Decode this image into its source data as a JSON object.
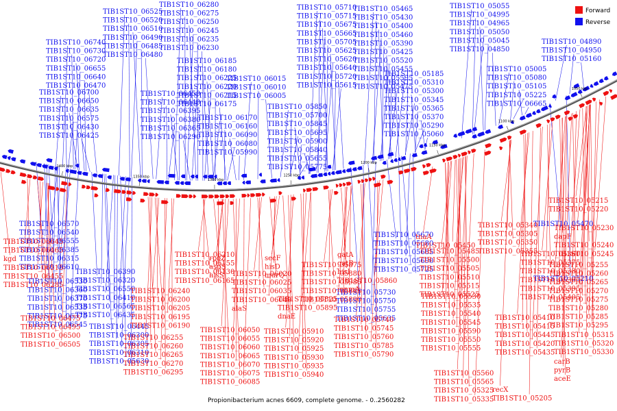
{
  "caption": "Propionibacterium acnes 6609, complete genome. - 0..2560282",
  "legend": {
    "forward": {
      "label": "Forward",
      "color": "#ee1111"
    },
    "reverse": {
      "label": "Reverse",
      "color": "#1111ee"
    }
  },
  "scale_ticks": [
    "1050 kbp",
    "1100 kbp",
    "1150 kbp",
    "1200 kbp",
    "1250 kbp",
    "1300 kbp",
    "1350 kbp",
    "1400 kbp"
  ],
  "reverse_labels": [
    "TIB1ST10_06525",
    "TIB1ST10_06520",
    "TIB1ST10_06510",
    "TIB1ST10_06490",
    "TIB1ST10_06485",
    "TIB1ST10_06480",
    "TIB1ST10_06740",
    "TIB1ST10_06730",
    "TIB1ST10_06720",
    "TIB1ST10_06655",
    "TIB1ST10_06640",
    "TIB1ST10_06470",
    "TIB1ST10_06700",
    "TIB1ST10_06650",
    "TIB1ST10_06635",
    "TIB1ST10_06575",
    "TIB1ST10_06430",
    "TIB1ST10_06425",
    "TIB1ST10_06450",
    "TIB1ST10_06440",
    "TIB1ST10_06395",
    "TIB1ST10_06380",
    "TIB1ST10_06365",
    "TIB1ST10_06290",
    "TIB1ST10_06280",
    "TIB1ST10_06275",
    "TIB1ST10_06250",
    "TIB1ST10_06245",
    "TIB1ST10_06235",
    "TIB1ST10_06230",
    "TIB1ST10_06185",
    "TIB1ST10_06180",
    "TIB1ST10_06225",
    "TIB1ST10_06220",
    "TIB1ST10_06215",
    "TIB1ST10_06175",
    "TIB1ST10_06170",
    "TIB1ST10_06160",
    "TIB1ST10_06090",
    "TIB1ST10_06080",
    "TIB1ST10_05990",
    "TIB1ST10_06015",
    "TIB1ST10_06010",
    "TIB1ST10_06005",
    "TIB1ST10_05710",
    "TIB1ST10_05715",
    "TIB1ST10_05675",
    "TIB1ST10_05665",
    "TIB1ST10_05705",
    "TIB1ST10_05625",
    "TIB1ST10_05620",
    "TIB1ST10_05640",
    "TIB1ST10_05720",
    "TIB1ST10_05615",
    "TIB1ST10_05850",
    "TIB1ST10_05700",
    "TIB1ST10_05845",
    "TIB1ST10_05695",
    "TIB1ST10_05900",
    "TIB1ST10_05840",
    "TIB1ST10_05655",
    "TIB1ST10_05775",
    "TIB1ST10_05465",
    "TIB1ST10_05430",
    "TIB1ST10_05400",
    "TIB1ST10_05460",
    "TIB1ST10_05390",
    "TIB1ST10_05425",
    "TIB1ST10_05520",
    "TIB1ST10_05455",
    "TIB1ST10_05595",
    "TIB1ST10_05475",
    "TIB1ST10_05185",
    "TIB1ST10_05310",
    "TIB1ST10_05300",
    "TIB1ST10_05345",
    "TIB1ST10_05365",
    "TIB1ST10_05370",
    "TIB1ST10_05290",
    "TIB1ST10_05060",
    "TIB1ST10_05055",
    "TIB1ST10_04995",
    "TIB1ST10_04965",
    "TIB1ST10_05050",
    "TIB1ST10_05045",
    "TIB1ST10_04850",
    "TIB1ST10_04890",
    "TIB1ST10_04950",
    "TIB1ST10_05160",
    "TIB1ST10_05005",
    "TIB1ST10_05080",
    "TIB1ST10_05105",
    "TIB1ST10_05225",
    "TIB1ST10_06665",
    "TIB1ST10_06570",
    "TIB1ST10_06540",
    "TIB1ST10_06555",
    "TIB1ST10_06385",
    "TIB1ST10_06315",
    "TIB1ST10_06610",
    "TIB1ST10_06530",
    "TIB1ST10_06360",
    "TIB1ST10_06370",
    "TIB1ST10_06535",
    "TIB1ST10_06375",
    "TIB1ST10_06545",
    "TIB1ST10_06390",
    "TIB1ST10_06320",
    "TIB1ST10_06550",
    "TIB1ST10_06410",
    "TIB1ST10_06565",
    "TIB1ST10_06435",
    "TIB1ST10_06445",
    "TIB1ST10_06300",
    "TIB1ST10_06305",
    "TIB1ST10_06310",
    "TIB1ST10_05630",
    "TIB1ST10_05670",
    "TIB1ST10_05680",
    "TIB1ST10_05685",
    "TIB1ST10_05690",
    "TIB1ST10_05725",
    "TIB1ST10_05730",
    "TIB1ST10_05750",
    "TIB1ST10_05755",
    "TIB1ST10_05635",
    "TIB1ST10_05470",
    "TIB1ST10_05210",
    "TIB1ST10_05250"
  ],
  "forward_labels": [
    "TIB1ST10_06645",
    "TIB1ST10_06465",
    "kgd",
    "TIB1ST10_06515",
    "TIB1ST10_06455",
    "TIB1ST10_06285",
    "TIB1ST10_06475",
    "TIB1ST10_06495",
    "TIB1ST10_06500",
    "TIB1ST10_06505",
    "TIB1ST10_06255",
    "TIB1ST10_06260",
    "TIB1ST10_06265",
    "TIB1ST10_06270",
    "TIB1ST10_06295",
    "TIB1ST10_06240",
    "TIB1ST10_06200",
    "TIB1ST10_06205",
    "TIB1ST10_06195",
    "TIB1ST10_06190",
    "TIB1ST10_06210",
    "TIB1ST10_06155",
    "TIB1ST10_06130",
    "TIB1ST10_06165",
    "rpoZ",
    "aspS",
    "hisS",
    "TIB1ST10_06020",
    "TIB1ST10_06025",
    "TIB1ST10_06035",
    "TIB1ST10_06040",
    "alaS",
    "TIB1ST10_06050",
    "TIB1ST10_06055",
    "TIB1ST10_06060",
    "TIB1ST10_06065",
    "TIB1ST10_06070",
    "TIB1ST10_06075",
    "TIB1ST10_06085",
    "secF",
    "hisD",
    "murQ",
    "TIB1ST10_05875",
    "TIB1ST10_05880",
    "TIB1ST10_05985",
    "TIB1ST10_05885",
    "TIB1ST10_05890",
    "TIB1ST10_05825",
    "TIB1ST10_05895",
    "dnaE",
    "TIB1ST10_05910",
    "TIB1ST10_05920",
    "TIB1ST10_05925",
    "TIB1ST10_05930",
    "TIB1ST10_05935",
    "TIB1ST10_05940",
    "gatA",
    "gatB",
    "hisI",
    "TIB1ST10_05860",
    "mnmA",
    "TIB1ST10_05740",
    "TIB1ST10_05745",
    "TIB1ST10_05760",
    "TIB1ST10_05785",
    "TIB1ST10_05790",
    "tnaA",
    "TIB1ST10_05450",
    "TIB1ST10_05485",
    "TIB1ST10_05500",
    "TIB1ST10_05505",
    "TIB1ST10_05510",
    "TIB1ST10_05515",
    "TIB1ST10_05525",
    "TIB1ST10_05530",
    "TIB1ST10_05535",
    "TIB1ST10_05540",
    "TIB1ST10_05545",
    "TIB1ST10_05590",
    "TIB1ST10_05550",
    "TIB1ST10_05555",
    "TIB1ST10_05560",
    "TIB1ST10_05565",
    "TIB1ST10_05325",
    "TIB1ST10_05335",
    "TIB1ST10_05340",
    "TIB1ST10_05305",
    "TIB1ST10_05350",
    "TIB1ST10_05355",
    "TIB1ST10_05360",
    "TIB1ST10_05375",
    "TIB1ST10_05380",
    "TIB1ST10_05385",
    "TIB1ST10_05395",
    "TIB1ST10_05405",
    "TIB1ST10_05410",
    "TIB1ST10_05415",
    "TIB1ST10_05445",
    "TIB1ST10_05420",
    "TIB1ST10_05435",
    "recX",
    "TIB1ST10_05205",
    "TIB1ST10_05215",
    "TIB1ST10_05220",
    "TIB1ST10_05230",
    "dapF",
    "TIB1ST10_05240",
    "TIB1ST10_05245",
    "TIB1ST10_05255",
    "TIB1ST10_05260",
    "TIB1ST10_05265",
    "TIB1ST10_05270",
    "TIB1ST10_05275",
    "TIB1ST10_05280",
    "TIB1ST10_05285",
    "TIB1ST10_05295",
    "TIB1ST10_05315",
    "TIB1ST10_05320",
    "TIB1ST10_05330",
    "carB",
    "pyrB",
    "aceE"
  ]
}
